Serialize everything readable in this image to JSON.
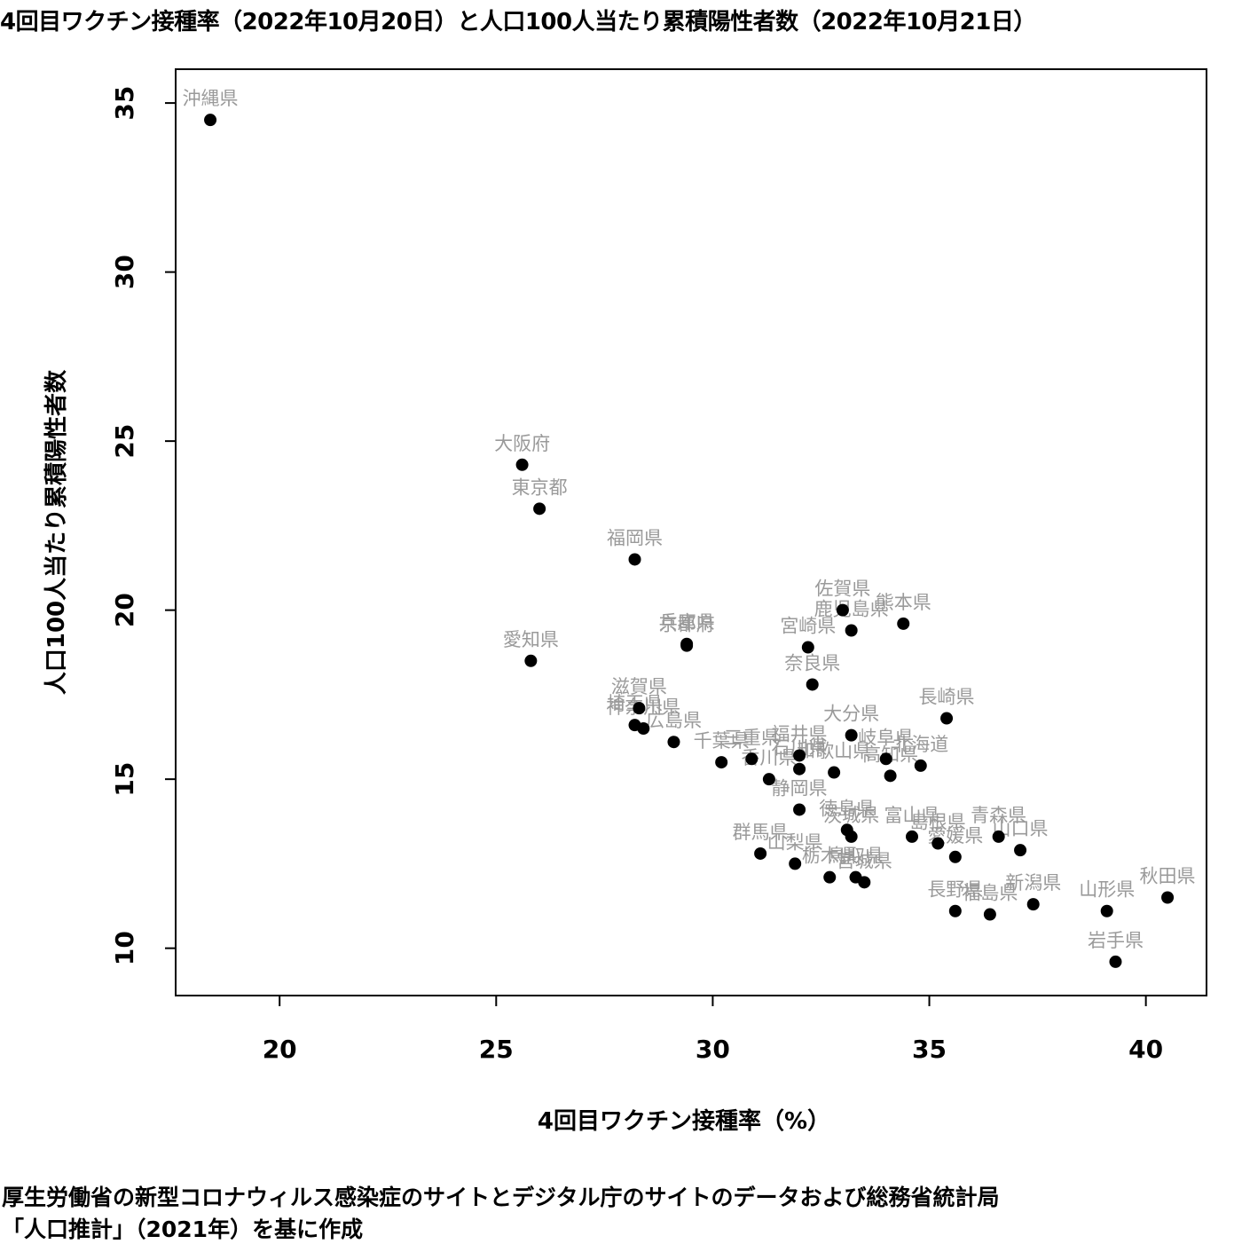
{
  "title": "4回目ワクチン接種率（2022年10月20日）と人口100人当たり累積陽性者数（2022年10月21日）",
  "footnote_line1": "厚生労働省の新型コロナウィルス感染症のサイトとデジタル庁のサイトのデータおよび総務省統計局",
  "footnote_line2": "「人口推計」（2021年）を基に作成",
  "chart_data": {
    "type": "scatter",
    "xlabel": "4回目ワクチン接種率（%）",
    "ylabel": "人口100人当たり累積陽性者数",
    "xlim": [
      17.6,
      41.4
    ],
    "ylim": [
      8.6,
      36.0
    ],
    "xticks": [
      20,
      25,
      30,
      35,
      40
    ],
    "yticks": [
      10,
      15,
      20,
      25,
      30,
      35
    ],
    "point_color": "#000000",
    "label_color": "#9a9a9a",
    "points": [
      {
        "name": "沖縄県",
        "x": 18.4,
        "y": 34.5
      },
      {
        "name": "大阪府",
        "x": 25.6,
        "y": 24.3
      },
      {
        "name": "東京都",
        "x": 26.0,
        "y": 23.0
      },
      {
        "name": "福岡県",
        "x": 28.2,
        "y": 21.5
      },
      {
        "name": "愛知県",
        "x": 25.8,
        "y": 18.5
      },
      {
        "name": "兵庫県",
        "x": 29.4,
        "y": 19.0
      },
      {
        "name": "京都府",
        "x": 29.4,
        "y": 18.95
      },
      {
        "name": "滋賀県",
        "x": 28.3,
        "y": 17.1
      },
      {
        "name": "埼玉県",
        "x": 28.2,
        "y": 16.6
      },
      {
        "name": "神奈川県",
        "x": 28.4,
        "y": 16.5
      },
      {
        "name": "広島県",
        "x": 29.1,
        "y": 16.1
      },
      {
        "name": "千葉県",
        "x": 30.2,
        "y": 15.5
      },
      {
        "name": "三重県",
        "x": 30.9,
        "y": 15.6
      },
      {
        "name": "香川県",
        "x": 31.3,
        "y": 15.0
      },
      {
        "name": "福井県",
        "x": 32.0,
        "y": 15.7
      },
      {
        "name": "石川県",
        "x": 32.0,
        "y": 15.3
      },
      {
        "name": "和歌山県",
        "x": 32.8,
        "y": 15.2
      },
      {
        "name": "静岡県",
        "x": 32.0,
        "y": 14.1
      },
      {
        "name": "佐賀県",
        "x": 33.0,
        "y": 20.0
      },
      {
        "name": "鹿児島県",
        "x": 33.2,
        "y": 19.4
      },
      {
        "name": "熊本県",
        "x": 34.4,
        "y": 19.6
      },
      {
        "name": "宮崎県",
        "x": 32.2,
        "y": 18.9
      },
      {
        "name": "奈良県",
        "x": 32.3,
        "y": 17.8
      },
      {
        "name": "大分県",
        "x": 33.2,
        "y": 16.3
      },
      {
        "name": "岐阜県",
        "x": 34.0,
        "y": 15.6
      },
      {
        "name": "高知県",
        "x": 34.1,
        "y": 15.1
      },
      {
        "name": "北海道",
        "x": 34.8,
        "y": 15.4
      },
      {
        "name": "長崎県",
        "x": 35.4,
        "y": 16.8
      },
      {
        "name": "徳島県",
        "x": 33.1,
        "y": 13.5
      },
      {
        "name": "茨城県",
        "x": 33.2,
        "y": 13.3
      },
      {
        "name": "富山県",
        "x": 34.6,
        "y": 13.3
      },
      {
        "name": "島根県",
        "x": 35.2,
        "y": 13.1
      },
      {
        "name": "愛媛県",
        "x": 35.6,
        "y": 12.7
      },
      {
        "name": "青森県",
        "x": 36.6,
        "y": 13.3
      },
      {
        "name": "山口県",
        "x": 37.1,
        "y": 12.9
      },
      {
        "name": "群馬県",
        "x": 31.1,
        "y": 12.8
      },
      {
        "name": "山梨県",
        "x": 31.9,
        "y": 12.5
      },
      {
        "name": "栃木県",
        "x": 32.7,
        "y": 12.1
      },
      {
        "name": "鳥取県",
        "x": 33.3,
        "y": 12.1
      },
      {
        "name": "宮城県",
        "x": 33.5,
        "y": 11.95
      },
      {
        "name": "長野県",
        "x": 35.6,
        "y": 11.1
      },
      {
        "name": "福島県",
        "x": 36.4,
        "y": 11.0
      },
      {
        "name": "新潟県",
        "x": 37.4,
        "y": 11.3
      },
      {
        "name": "山形県",
        "x": 39.1,
        "y": 11.1
      },
      {
        "name": "秋田県",
        "x": 40.5,
        "y": 11.5
      },
      {
        "name": "岩手県",
        "x": 39.3,
        "y": 9.6
      }
    ]
  }
}
